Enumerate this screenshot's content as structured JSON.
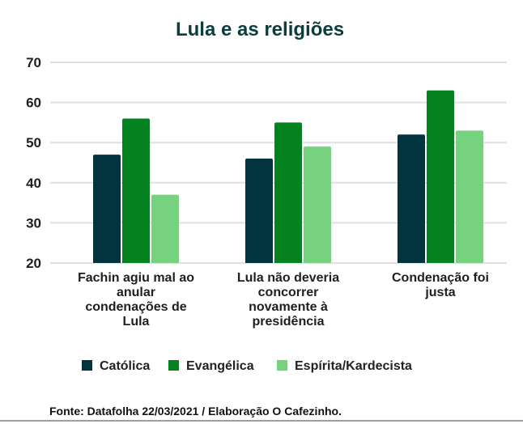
{
  "chart_data": {
    "type": "bar",
    "title": "Lula e as religiões",
    "xlabel": "",
    "ylabel": "",
    "ylim": [
      20,
      70
    ],
    "yticks": [
      20,
      30,
      40,
      50,
      60,
      70
    ],
    "grid": true,
    "legend_position": "bottom",
    "categories": [
      [
        "Fachin agiu mal ao",
        "anular",
        "condenações de",
        "Lula"
      ],
      [
        "Lula não deveria",
        "concorrer",
        "novamente à",
        "presidência"
      ],
      [
        "Condenação foi",
        "justa"
      ]
    ],
    "series": [
      {
        "name": "Católica",
        "color": "#023440",
        "values": [
          47,
          46,
          52
        ]
      },
      {
        "name": "Evangélica",
        "color": "#03821f",
        "values": [
          56,
          55,
          63
        ]
      },
      {
        "name": "Espírita/Kardecista",
        "color": "#76d27f",
        "values": [
          37,
          49,
          53
        ]
      }
    ],
    "source": "Fonte: Datafolha 22/03/2021 / Elaboração O Cafezinho."
  }
}
